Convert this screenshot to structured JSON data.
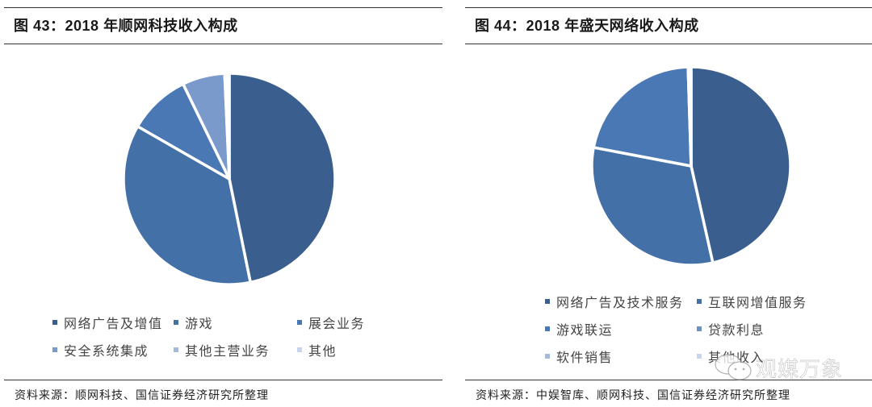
{
  "chart_data": [
    {
      "type": "pie",
      "title": "图 43：2018 年顺网科技收入构成",
      "categories": [
        "网络广告及增值",
        "游戏",
        "展会业务",
        "安全系统集成",
        "其他主营业务",
        "其他"
      ],
      "values": [
        46.8,
        36.5,
        9.5,
        6.5,
        0.4,
        0.3
      ],
      "units": "% (estimated from slice angles)",
      "colors": [
        "#3A5F8F",
        "#4470A8",
        "#4A78B4",
        "#7A9ACB",
        "#A6BADB",
        "#C8D4E8"
      ],
      "start_angle": "12 o'clock, clockwise",
      "legend_position": "bottom",
      "source": "资料来源：顺网科技、国信证券经济研究所整理"
    },
    {
      "type": "pie",
      "title": "图 44：2018 年盛天网络收入构成",
      "categories": [
        "网络广告及技术服务",
        "互联网增值服务",
        "游戏联运",
        "贷款利息",
        "软件销售",
        "其他收入"
      ],
      "values": [
        46.5,
        31.5,
        21.5,
        0.2,
        0.2,
        0.1
      ],
      "units": "% (estimated from slice angles)",
      "colors": [
        "#3A5F8F",
        "#4470A8",
        "#4A78B4",
        "#6E90C4",
        "#A6BADB",
        "#C8D4E8"
      ],
      "start_angle": "12 o'clock, clockwise",
      "legend_position": "bottom",
      "source": "资料来源：中娱智库、顺网科技、国信证券经济研究所整理"
    }
  ],
  "left": {
    "title": "图 43：2018 年顺网科技收入构成",
    "legend": [
      {
        "label": "网络广告及增值",
        "color": "#3A5F8F"
      },
      {
        "label": "游戏",
        "color": "#4470A8"
      },
      {
        "label": "展会业务",
        "color": "#4A78B4"
      },
      {
        "label": "安全系统集成",
        "color": "#7A9ACB"
      },
      {
        "label": "其他主营业务",
        "color": "#A6BADB"
      },
      {
        "label": "其他",
        "color": "#C8D4E8"
      }
    ],
    "source": "资料来源：顺网科技、国信证券经济研究所整理"
  },
  "right": {
    "title": "图 44：2018 年盛天网络收入构成",
    "legend": [
      {
        "label": "网络广告及技术服务",
        "color": "#3A5F8F"
      },
      {
        "label": "互联网增值服务",
        "color": "#4470A8"
      },
      {
        "label": "游戏联运",
        "color": "#4A78B4"
      },
      {
        "label": "贷款利息",
        "color": "#6E90C4"
      },
      {
        "label": "软件销售",
        "color": "#A6BADB"
      },
      {
        "label": "其他收入",
        "color": "#C8D4E8"
      }
    ],
    "source": "资料来源：中娱智库、顺网科技、国信证券经济研究所整理"
  },
  "watermark": {
    "text": "观媒万象",
    "icon": "wechat-icon"
  }
}
